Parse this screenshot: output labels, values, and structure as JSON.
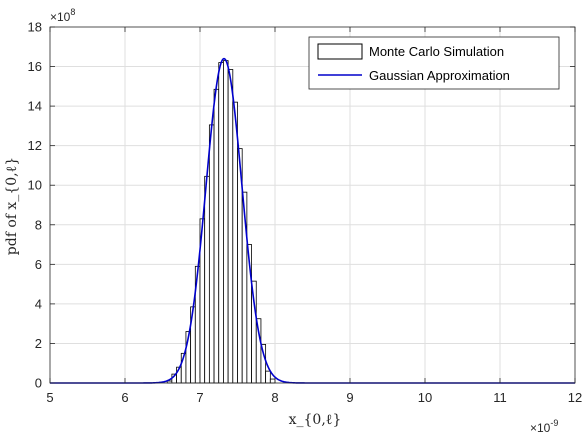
{
  "chart_data": {
    "type": "bar",
    "xlabel": "x_{0,ℓ}",
    "ylabel": "pdf of x_{0,ℓ}",
    "x_multiplier": "×10",
    "x_multiplier_exp": "-9",
    "y_multiplier": "×10",
    "y_multiplier_exp": "8",
    "xlim": [
      5,
      12
    ],
    "ylim": [
      0,
      18
    ],
    "xticks": [
      5,
      6,
      7,
      8,
      9,
      10,
      11,
      12
    ],
    "yticks": [
      0,
      2,
      4,
      6,
      8,
      10,
      12,
      14,
      16,
      18
    ],
    "grid": true,
    "legend": "top-right",
    "legend_entries": [
      "Monte Carlo Simulation",
      "Gaussian Approximation"
    ],
    "series": [
      {
        "name": "Monte Carlo Simulation",
        "type": "histogram",
        "bin_width": 0.0625,
        "bin_starts": [
          6.5625,
          6.625,
          6.6875,
          6.75,
          6.8125,
          6.875,
          6.9375,
          7.0,
          7.0625,
          7.125,
          7.1875,
          7.25,
          7.3125,
          7.375,
          7.4375,
          7.5,
          7.5625,
          7.625,
          7.6875,
          7.75,
          7.8125,
          7.875,
          7.9375
        ],
        "values": [
          0.1,
          0.45,
          0.8,
          1.5,
          2.6,
          3.85,
          5.9,
          8.3,
          10.45,
          13.05,
          14.85,
          16.2,
          16.3,
          15.85,
          14.2,
          11.85,
          9.65,
          7.0,
          5.15,
          3.25,
          1.95,
          0.6,
          0.2
        ]
      },
      {
        "name": "Gaussian Approximation",
        "type": "line",
        "mean": 7.32,
        "std": 0.24,
        "peak": 16.4,
        "color": "#0000cc"
      }
    ]
  }
}
